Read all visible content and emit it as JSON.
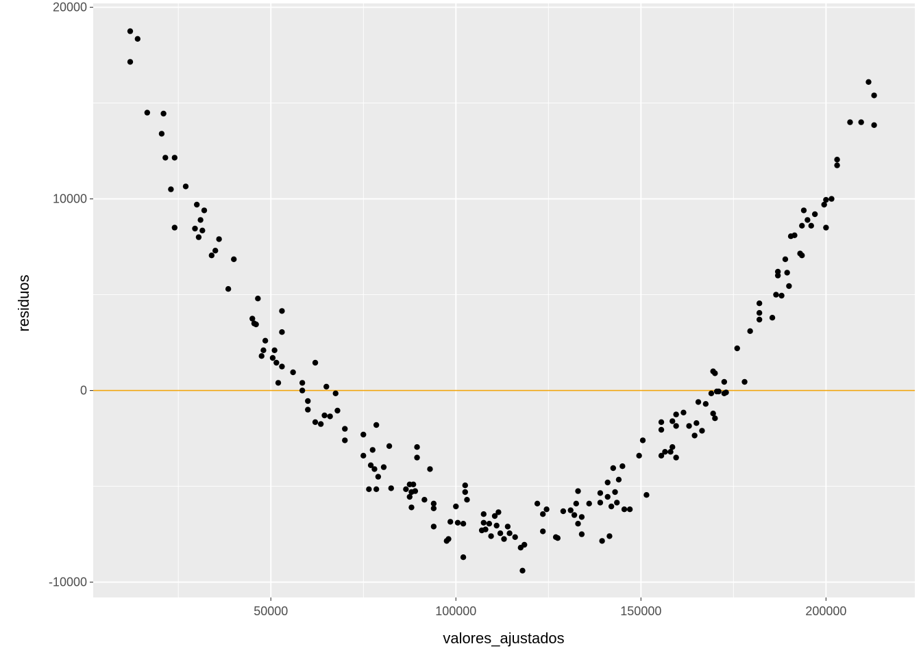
{
  "chart_data": {
    "type": "scatter",
    "xlabel": "valores_ajustados",
    "ylabel": "residuos",
    "xlim": [
      2000,
      224000
    ],
    "ylim": [
      -10800,
      20200
    ],
    "x_ticks": [
      50000,
      100000,
      150000,
      200000
    ],
    "x_tick_labels": [
      "50000",
      "100000",
      "150000",
      "200000"
    ],
    "y_ticks": [
      -10000,
      0,
      10000,
      20000
    ],
    "y_tick_labels": [
      "-10000",
      "0",
      "10000",
      "20000"
    ],
    "grid": true,
    "reference_line": {
      "y": 0,
      "color": "#f0a30a"
    },
    "colors": {
      "panel": "#ebebeb",
      "grid": "#ffffff",
      "point": "#000000",
      "axis_text": "#4d4d4d"
    },
    "points": [
      [
        12000,
        18750
      ],
      [
        14000,
        18350
      ],
      [
        12000,
        17150
      ],
      [
        16600,
        14500
      ],
      [
        21000,
        14450
      ],
      [
        20500,
        13400
      ],
      [
        21500,
        12150
      ],
      [
        24000,
        12150
      ],
      [
        23000,
        10500
      ],
      [
        27000,
        10650
      ],
      [
        24000,
        8500
      ],
      [
        30000,
        9700
      ],
      [
        32000,
        9400
      ],
      [
        31000,
        8900
      ],
      [
        29500,
        8450
      ],
      [
        31500,
        8350
      ],
      [
        30500,
        8000
      ],
      [
        36000,
        7900
      ],
      [
        35000,
        7300
      ],
      [
        34000,
        7050
      ],
      [
        40000,
        6850
      ],
      [
        38500,
        5300
      ],
      [
        46500,
        4800
      ],
      [
        53000,
        4150
      ],
      [
        45000,
        3750
      ],
      [
        45500,
        3500
      ],
      [
        46000,
        3450
      ],
      [
        53000,
        3050
      ],
      [
        48500,
        2600
      ],
      [
        48000,
        2100
      ],
      [
        51000,
        2100
      ],
      [
        47500,
        1800
      ],
      [
        50500,
        1700
      ],
      [
        51500,
        1450
      ],
      [
        53000,
        1250
      ],
      [
        52000,
        400
      ],
      [
        56000,
        950
      ],
      [
        62000,
        1450
      ],
      [
        58500,
        400
      ],
      [
        58500,
        0
      ],
      [
        60000,
        -550
      ],
      [
        65000,
        200
      ],
      [
        67500,
        -150
      ],
      [
        60000,
        -1000
      ],
      [
        64500,
        -1300
      ],
      [
        66000,
        -1350
      ],
      [
        68000,
        -1050
      ],
      [
        62000,
        -1650
      ],
      [
        63500,
        -1750
      ],
      [
        70000,
        -2000
      ],
      [
        70000,
        -2600
      ],
      [
        78500,
        -1800
      ],
      [
        75000,
        -2300
      ],
      [
        82000,
        -2900
      ],
      [
        77500,
        -3100
      ],
      [
        89500,
        -2950
      ],
      [
        75000,
        -3400
      ],
      [
        89500,
        -3500
      ],
      [
        77000,
        -3900
      ],
      [
        78000,
        -4100
      ],
      [
        80500,
        -4000
      ],
      [
        93000,
        -4100
      ],
      [
        79000,
        -4500
      ],
      [
        87500,
        -4900
      ],
      [
        86500,
        -5150
      ],
      [
        88500,
        -4900
      ],
      [
        102500,
        -4950
      ],
      [
        76500,
        -5150
      ],
      [
        78500,
        -5150
      ],
      [
        82500,
        -5100
      ],
      [
        88000,
        -5300
      ],
      [
        89000,
        -5250
      ],
      [
        87500,
        -5550
      ],
      [
        102500,
        -5300
      ],
      [
        91500,
        -5700
      ],
      [
        103000,
        -5700
      ],
      [
        94000,
        -5900
      ],
      [
        100000,
        -6050
      ],
      [
        88000,
        -6100
      ],
      [
        94000,
        -6150
      ],
      [
        122000,
        -5900
      ],
      [
        124500,
        -6200
      ],
      [
        133000,
        -5250
      ],
      [
        139000,
        -5350
      ],
      [
        143000,
        -5300
      ],
      [
        141000,
        -4800
      ],
      [
        142500,
        -4050
      ],
      [
        145000,
        -3950
      ],
      [
        144000,
        -4650
      ],
      [
        149500,
        -3400
      ],
      [
        150500,
        -2600
      ],
      [
        151500,
        -5450
      ],
      [
        107500,
        -6450
      ],
      [
        111500,
        -6350
      ],
      [
        123500,
        -6450
      ],
      [
        110500,
        -6550
      ],
      [
        129000,
        -6300
      ],
      [
        131000,
        -6250
      ],
      [
        132500,
        -5900
      ],
      [
        134000,
        -6600
      ],
      [
        136000,
        -5900
      ],
      [
        139000,
        -5850
      ],
      [
        141000,
        -5550
      ],
      [
        142000,
        -6050
      ],
      [
        143500,
        -5850
      ],
      [
        145500,
        -6200
      ],
      [
        147000,
        -6200
      ],
      [
        132000,
        -6500
      ],
      [
        133000,
        -6950
      ],
      [
        107500,
        -6900
      ],
      [
        108000,
        -7250
      ],
      [
        107000,
        -7300
      ],
      [
        109000,
        -6950
      ],
      [
        111000,
        -7050
      ],
      [
        114000,
        -7100
      ],
      [
        94000,
        -7100
      ],
      [
        98500,
        -6850
      ],
      [
        100500,
        -6900
      ],
      [
        102000,
        -6950
      ],
      [
        112000,
        -7450
      ],
      [
        114500,
        -7450
      ],
      [
        109500,
        -7600
      ],
      [
        113000,
        -7750
      ],
      [
        116000,
        -7650
      ],
      [
        98000,
        -7750
      ],
      [
        97500,
        -7850
      ],
      [
        123500,
        -7350
      ],
      [
        127000,
        -7650
      ],
      [
        127500,
        -7700
      ],
      [
        134000,
        -7500
      ],
      [
        139500,
        -7850
      ],
      [
        141500,
        -7600
      ],
      [
        118500,
        -8050
      ],
      [
        117500,
        -8200
      ],
      [
        102000,
        -8700
      ],
      [
        118000,
        -9400
      ],
      [
        155500,
        -1650
      ],
      [
        155500,
        -2050
      ],
      [
        158500,
        -1600
      ],
      [
        159500,
        -1250
      ],
      [
        159500,
        -1850
      ],
      [
        161500,
        -1150
      ],
      [
        163000,
        -1850
      ],
      [
        164500,
        -2350
      ],
      [
        165000,
        -1700
      ],
      [
        165500,
        -600
      ],
      [
        166500,
        -2100
      ],
      [
        167500,
        -700
      ],
      [
        155500,
        -3400
      ],
      [
        156500,
        -3200
      ],
      [
        158000,
        -3200
      ],
      [
        158500,
        -2950
      ],
      [
        159500,
        -3500
      ],
      [
        169000,
        -150
      ],
      [
        169500,
        -1200
      ],
      [
        170000,
        -1450
      ],
      [
        170500,
        -50
      ],
      [
        171000,
        -50
      ],
      [
        172500,
        -150
      ],
      [
        172500,
        450
      ],
      [
        173000,
        -100
      ],
      [
        169500,
        1000
      ],
      [
        170000,
        900
      ],
      [
        176000,
        2200
      ],
      [
        178000,
        450
      ],
      [
        179500,
        3100
      ],
      [
        182000,
        3700
      ],
      [
        182000,
        4050
      ],
      [
        182000,
        4550
      ],
      [
        185500,
        3800
      ],
      [
        186500,
        5000
      ],
      [
        187000,
        6000
      ],
      [
        187000,
        6200
      ],
      [
        188000,
        4950
      ],
      [
        189500,
        6150
      ],
      [
        189000,
        6850
      ],
      [
        190000,
        5450
      ],
      [
        190500,
        8050
      ],
      [
        191500,
        8100
      ],
      [
        193000,
        7150
      ],
      [
        193500,
        7050
      ],
      [
        193500,
        8600
      ],
      [
        194000,
        9400
      ],
      [
        195000,
        8900
      ],
      [
        196000,
        8600
      ],
      [
        197000,
        9200
      ],
      [
        199500,
        9700
      ],
      [
        200000,
        9950
      ],
      [
        200000,
        8500
      ],
      [
        201500,
        10000
      ],
      [
        203000,
        11750
      ],
      [
        203000,
        12050
      ],
      [
        206500,
        14000
      ],
      [
        209500,
        14000
      ],
      [
        211500,
        16100
      ],
      [
        213000,
        15400
      ],
      [
        213000,
        13850
      ]
    ]
  }
}
